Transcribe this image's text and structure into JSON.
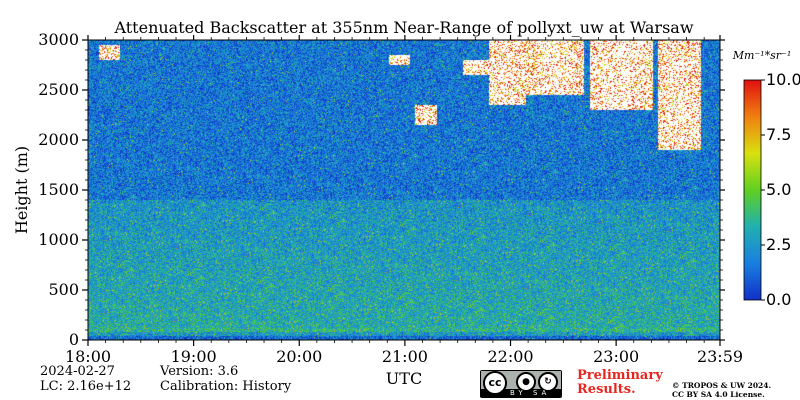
{
  "chart_data": {
    "type": "heatmap",
    "title": "Attenuated Backscatter at 355nm Near-Range of pollyxt_uw at Warsaw",
    "xlabel": "UTC",
    "ylabel": "Height (m)",
    "x_range_hours": [
      18.0,
      23.9833
    ],
    "ylim": [
      0,
      3000
    ],
    "x_ticks": [
      {
        "value": 18.0,
        "label": "18:00"
      },
      {
        "value": 19.0,
        "label": "19:00"
      },
      {
        "value": 20.0,
        "label": "20:00"
      },
      {
        "value": 21.0,
        "label": "21:00"
      },
      {
        "value": 22.0,
        "label": "22:00"
      },
      {
        "value": 23.0,
        "label": "23:00"
      },
      {
        "value": 23.9833,
        "label": "23:59"
      }
    ],
    "y_ticks": [
      {
        "value": 0,
        "label": "0"
      },
      {
        "value": 500,
        "label": "500"
      },
      {
        "value": 1000,
        "label": "1000"
      },
      {
        "value": 1500,
        "label": "1500"
      },
      {
        "value": 2000,
        "label": "2000"
      },
      {
        "value": 2500,
        "label": "2500"
      },
      {
        "value": 3000,
        "label": "3000"
      }
    ],
    "colorbar": {
      "unit": "Mm⁻¹*sr⁻¹",
      "range": [
        0.0,
        10.0
      ],
      "ticks": [
        {
          "value": 0.0,
          "label": "0.0"
        },
        {
          "value": 2.5,
          "label": "2.5"
        },
        {
          "value": 5.0,
          "label": "5.0"
        },
        {
          "value": 7.5,
          "label": "7.5"
        },
        {
          "value": 10.0,
          "label": "10.0"
        }
      ],
      "colors": [
        "#1030c8",
        "#1a7fe0",
        "#20b0b0",
        "#60d020",
        "#d8e010",
        "#f08010",
        "#e01010"
      ]
    },
    "features": {
      "surface_layer_top_m": 120,
      "aerosol_layer_top_m": 1400,
      "aerosol_layer_value": 3.2,
      "background_value": 1.6,
      "cloud_segments": [
        {
          "t0": 18.1,
          "t1": 18.3,
          "h0": 2800,
          "h1": 2950
        },
        {
          "t0": 20.85,
          "t1": 21.05,
          "h0": 2750,
          "h1": 2850
        },
        {
          "t0": 21.1,
          "t1": 21.3,
          "h0": 2150,
          "h1": 2350
        },
        {
          "t0": 21.55,
          "t1": 21.8,
          "h0": 2650,
          "h1": 2800
        },
        {
          "t0": 21.8,
          "t1": 22.15,
          "h0": 2350,
          "h1": 3000
        },
        {
          "t0": 22.15,
          "t1": 22.7,
          "h0": 2450,
          "h1": 3000
        },
        {
          "t0": 22.75,
          "t1": 23.35,
          "h0": 2300,
          "h1": 3000
        },
        {
          "t0": 23.4,
          "t1": 23.8,
          "h0": 1900,
          "h1": 3000
        }
      ]
    }
  },
  "footer": {
    "date": "2024-02-27",
    "lc": "LC: 2.16e+12",
    "version": "Version: 3.6",
    "calibration": "Calibration: History",
    "preliminary_line1": "Preliminary",
    "preliminary_line2": "Results.",
    "copyright_line1": "© TROPOS & UW 2024.",
    "copyright_line2": "CC BY SA 4.0 License.",
    "license_badge": {
      "cc": "cc",
      "by": "BY",
      "sa": "SA"
    }
  }
}
